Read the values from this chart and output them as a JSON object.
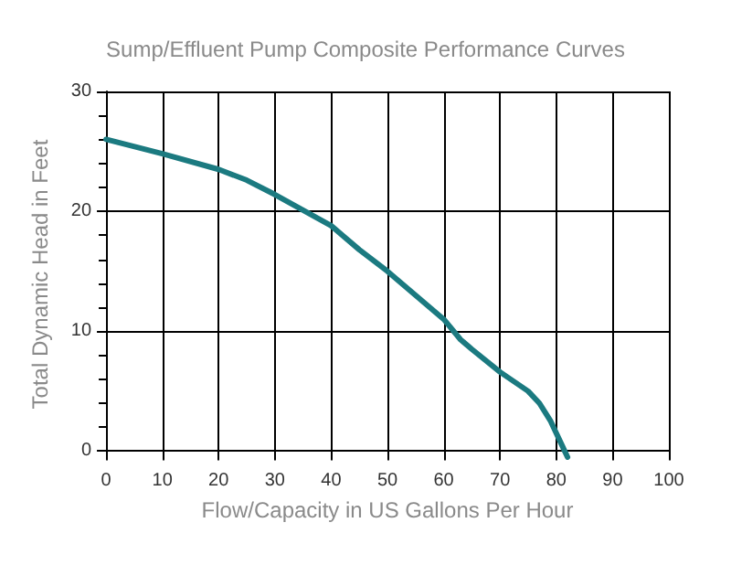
{
  "chart_data": {
    "type": "line",
    "title": "Sump/Effluent Pump Composite Performance Curves",
    "xlabel": "Flow/Capacity in US Gallons Per Hour",
    "ylabel": "Total Dynamic Head in Feet",
    "series": [
      {
        "color": "#1b7a80",
        "x": [
          0,
          10,
          20,
          25,
          30,
          35,
          40,
          45,
          50,
          55,
          60,
          63,
          65,
          70,
          75,
          77,
          79,
          81,
          82
        ],
        "values": [
          26,
          24.8,
          23.5,
          22.6,
          21.4,
          20.1,
          18.8,
          16.8,
          15,
          13,
          11,
          9.3,
          8.5,
          6.6,
          5,
          4,
          2.5,
          0.5,
          -0.5
        ]
      }
    ],
    "xlim": [
      0,
      100
    ],
    "xticks": [
      0,
      10,
      20,
      30,
      40,
      50,
      60,
      70,
      80,
      90,
      100
    ],
    "ylim": [
      -0.5,
      30
    ],
    "yticks": [
      0,
      {
        "value": 2,
        "label": null
      },
      {
        "value": 4,
        "label": null
      },
      {
        "value": 6,
        "label": null
      },
      {
        "value": 8,
        "label": null
      },
      10,
      {
        "value": 12,
        "label": null
      },
      {
        "value": 14,
        "label": null
      },
      {
        "value": 16,
        "label": null
      },
      {
        "value": 18,
        "label": null
      },
      20,
      {
        "value": 22,
        "label": null
      },
      {
        "value": 24,
        "label": null
      },
      {
        "value": 26,
        "label": null
      },
      {
        "value": 28,
        "label": null
      },
      30
    ],
    "grid": true,
    "marker": "none",
    "line_style": "solid"
  }
}
